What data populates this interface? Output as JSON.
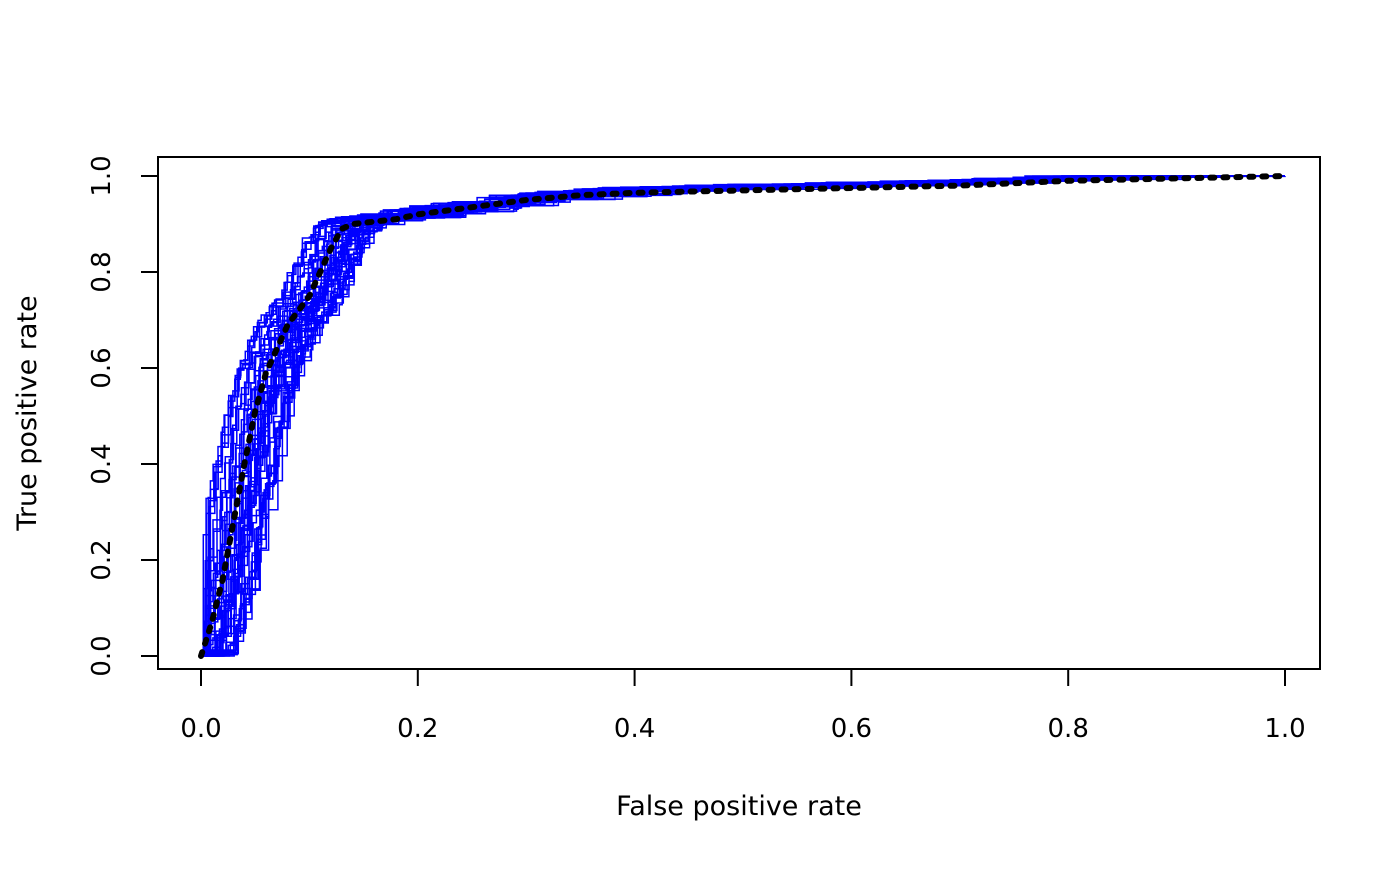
{
  "chart_data": {
    "type": "line",
    "title": "",
    "xlabel": "False positive rate",
    "ylabel": "True positive rate",
    "xlim": [
      0,
      1
    ],
    "ylim": [
      0,
      1
    ],
    "x_ticks": [
      "0.0",
      "0.2",
      "0.4",
      "0.6",
      "0.8",
      "1.0"
    ],
    "y_ticks": [
      "0.0",
      "0.2",
      "0.4",
      "0.6",
      "0.8",
      "1.0"
    ],
    "grid": false,
    "legend": "none",
    "colors": {
      "curves": "#0000ff",
      "average": "#000000"
    },
    "series": [
      {
        "style": "dotted",
        "color": "#000000",
        "x": [
          0.0,
          0.01,
          0.02,
          0.03,
          0.04,
          0.05,
          0.06,
          0.07,
          0.08,
          0.09,
          0.1,
          0.11,
          0.12,
          0.13,
          0.14,
          0.16,
          0.18,
          0.2,
          0.25,
          0.3,
          0.35,
          0.4,
          0.5,
          0.6,
          0.7,
          0.8,
          0.9,
          1.0
        ],
        "y": [
          0.0,
          0.07,
          0.16,
          0.28,
          0.4,
          0.51,
          0.59,
          0.64,
          0.69,
          0.72,
          0.75,
          0.8,
          0.85,
          0.89,
          0.9,
          0.905,
          0.91,
          0.92,
          0.935,
          0.95,
          0.96,
          0.965,
          0.97,
          0.975,
          0.98,
          0.99,
          0.995,
          1.0
        ]
      }
    ],
    "replicates": {
      "count": 50,
      "color": "#0000ff",
      "style": "step"
    }
  }
}
